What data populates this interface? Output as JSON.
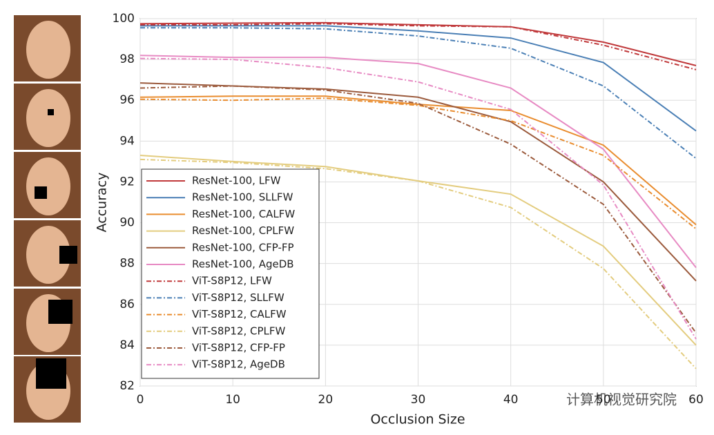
{
  "chart_data": {
    "type": "line",
    "x_label": "Occlusion Size",
    "y_label": "Accuracy",
    "x": [
      0,
      10,
      20,
      30,
      40,
      50,
      60
    ],
    "xlim": [
      0,
      60
    ],
    "xticks": [
      0,
      10,
      20,
      30,
      40,
      50,
      60
    ],
    "ylim": [
      82,
      100
    ],
    "yticks": [
      82,
      84,
      86,
      88,
      90,
      92,
      94,
      96,
      98,
      100
    ],
    "grid": true,
    "legend": "lower-left",
    "watermark": "计算机视觉研究院",
    "series": [
      {
        "name": "ResNet-100, LFW",
        "color": "#c0393b",
        "style": "solid",
        "values": [
          99.75,
          99.78,
          99.8,
          99.7,
          99.6,
          98.85,
          97.7
        ]
      },
      {
        "name": "ResNet-100, SLLFW",
        "color": "#4a7fb5",
        "style": "solid",
        "values": [
          99.65,
          99.65,
          99.65,
          99.4,
          99.05,
          97.85,
          94.5
        ]
      },
      {
        "name": "ResNet-100, CALFW",
        "color": "#e98c2e",
        "style": "solid",
        "values": [
          96.15,
          96.2,
          96.2,
          95.8,
          95.5,
          93.8,
          89.9
        ]
      },
      {
        "name": "ResNet-100, CPLFW",
        "color": "#e3cc7e",
        "style": "solid",
        "values": [
          93.3,
          93.0,
          92.75,
          92.05,
          91.4,
          88.85,
          84.0
        ]
      },
      {
        "name": "ResNet-100, CFP-FP",
        "color": "#9b5a3c",
        "style": "solid",
        "values": [
          96.85,
          96.7,
          96.55,
          96.15,
          94.95,
          92.0,
          87.15
        ]
      },
      {
        "name": "ResNet-100, AgeDB",
        "color": "#e78ac3",
        "style": "solid",
        "values": [
          98.2,
          98.1,
          98.1,
          97.8,
          96.6,
          93.6,
          87.8
        ]
      },
      {
        "name": "ViT-S8P12, LFW",
        "color": "#c0393b",
        "style": "dashdot",
        "values": [
          99.7,
          99.7,
          99.75,
          99.65,
          99.6,
          98.7,
          97.5
        ]
      },
      {
        "name": "ViT-S8P12, SLLFW",
        "color": "#4a7fb5",
        "style": "dashdot",
        "values": [
          99.55,
          99.55,
          99.5,
          99.15,
          98.55,
          96.7,
          93.15
        ]
      },
      {
        "name": "ViT-S8P12, CALFW",
        "color": "#e98c2e",
        "style": "dashdot",
        "values": [
          96.05,
          96.0,
          96.1,
          95.75,
          95.0,
          93.3,
          89.7
        ]
      },
      {
        "name": "ViT-S8P12, CPLFW",
        "color": "#e3cc7e",
        "style": "dashdot",
        "values": [
          93.1,
          92.95,
          92.65,
          92.05,
          90.75,
          87.75,
          82.85
        ]
      },
      {
        "name": "ViT-S8P12, CFP-FP",
        "color": "#9b5a3c",
        "style": "dashdot",
        "values": [
          96.6,
          96.7,
          96.5,
          95.85,
          93.85,
          90.9,
          84.6
        ]
      },
      {
        "name": "ViT-S8P12, AgeDB",
        "color": "#e78ac3",
        "style": "dashdot",
        "values": [
          98.05,
          98.0,
          97.6,
          96.9,
          95.55,
          91.85,
          84.3
        ]
      }
    ]
  }
}
